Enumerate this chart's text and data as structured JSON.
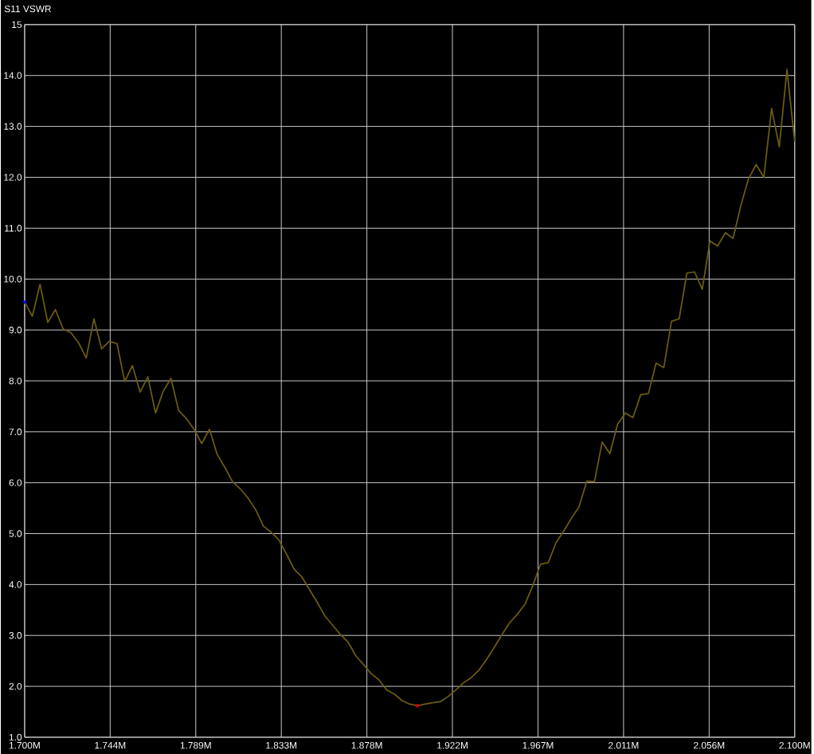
{
  "chart_data": {
    "type": "line",
    "title": "S11 VSWR",
    "grid": true,
    "marker": "none",
    "line_style": "solid",
    "xlim": [
      1.7,
      2.1
    ],
    "ylim": [
      1,
      15
    ],
    "xticks": [
      {
        "value": 1.7,
        "label": "1.700M"
      },
      {
        "value": 1.74444,
        "label": "1.744M"
      },
      {
        "value": 1.78889,
        "label": "1.789M"
      },
      {
        "value": 1.83333,
        "label": "1.833M"
      },
      {
        "value": 1.87778,
        "label": "1.878M"
      },
      {
        "value": 1.92222,
        "label": "1.922M"
      },
      {
        "value": 1.96667,
        "label": "1.967M"
      },
      {
        "value": 2.01111,
        "label": "2.011M"
      },
      {
        "value": 2.05556,
        "label": "2.056M"
      },
      {
        "value": 2.1,
        "label": "2.100M"
      }
    ],
    "yticks": [
      {
        "value": 1,
        "label": "1.0"
      },
      {
        "value": 2,
        "label": "2.0"
      },
      {
        "value": 3,
        "label": "3.0"
      },
      {
        "value": 4,
        "label": "4.0"
      },
      {
        "value": 5,
        "label": "5.0"
      },
      {
        "value": 6,
        "label": "6.0"
      },
      {
        "value": 7,
        "label": "7.0"
      },
      {
        "value": 8,
        "label": "8.0"
      },
      {
        "value": 9,
        "label": "9.0"
      },
      {
        "value": 10,
        "label": "10.0"
      },
      {
        "value": 11,
        "label": "11.0"
      },
      {
        "value": 12,
        "label": "12.0"
      },
      {
        "value": 13,
        "label": "13.0"
      },
      {
        "value": 14,
        "label": "14.0"
      },
      15
    ],
    "series": [
      {
        "color": "#6b5c12",
        "x": [
          1.7,
          1.704,
          1.708,
          1.712,
          1.716,
          1.72,
          1.724,
          1.728,
          1.732,
          1.736,
          1.74,
          1.744,
          1.748,
          1.752,
          1.756,
          1.76,
          1.764,
          1.768,
          1.772,
          1.776,
          1.78,
          1.784,
          1.788,
          1.792,
          1.796,
          1.8,
          1.804,
          1.808,
          1.812,
          1.816,
          1.82,
          1.824,
          1.828,
          1.832,
          1.836,
          1.84,
          1.844,
          1.848,
          1.852,
          1.856,
          1.86,
          1.864,
          1.868,
          1.872,
          1.876,
          1.88,
          1.884,
          1.888,
          1.892,
          1.896,
          1.9,
          1.904,
          1.908,
          1.912,
          1.916,
          1.92,
          1.924,
          1.928,
          1.932,
          1.936,
          1.94,
          1.944,
          1.948,
          1.952,
          1.956,
          1.96,
          1.964,
          1.968,
          1.972,
          1.976,
          1.98,
          1.984,
          1.988,
          1.992,
          1.996,
          2.0,
          2.004,
          2.008,
          2.012,
          2.016,
          2.02,
          2.024,
          2.028,
          2.032,
          2.036,
          2.04,
          2.044,
          2.048,
          2.052,
          2.056,
          2.06,
          2.064,
          2.068,
          2.072,
          2.076,
          2.08,
          2.084,
          2.088,
          2.092,
          2.096,
          2.1
        ],
        "values": [
          9.55,
          9.27,
          9.9,
          9.15,
          9.4,
          9.02,
          8.95,
          8.75,
          8.45,
          9.22,
          8.63,
          8.78,
          8.73,
          7.99,
          8.3,
          7.78,
          8.08,
          7.37,
          7.8,
          8.05,
          7.42,
          7.26,
          7.05,
          6.77,
          7.05,
          6.56,
          6.3,
          6.02,
          5.88,
          5.7,
          5.47,
          5.15,
          5.03,
          4.88,
          4.6,
          4.3,
          4.15,
          3.9,
          3.65,
          3.38,
          3.2,
          3.02,
          2.87,
          2.6,
          2.43,
          2.25,
          2.13,
          1.93,
          1.85,
          1.72,
          1.65,
          1.62,
          1.65,
          1.68,
          1.7,
          1.8,
          1.93,
          2.07,
          2.17,
          2.32,
          2.53,
          2.77,
          3.02,
          3.25,
          3.42,
          3.62,
          3.98,
          4.4,
          4.43,
          4.82,
          5.05,
          5.3,
          5.53,
          6.03,
          6.02,
          6.8,
          6.57,
          7.15,
          7.37,
          7.28,
          7.73,
          7.75,
          8.35,
          8.26,
          9.17,
          9.22,
          10.12,
          10.14,
          9.8,
          10.75,
          10.65,
          10.91,
          10.8,
          11.44,
          11.97,
          12.25,
          12.0,
          13.35,
          12.6,
          14.12,
          12.7
        ]
      },
      {
        "type": "scatter",
        "marker": "triangle",
        "color": "#0000ff",
        "x": [
          1.7
        ],
        "values": [
          9.55
        ]
      },
      {
        "type": "scatter",
        "marker": "triangle",
        "color": "#ff0000",
        "x": [
          1.904
        ],
        "values": [
          1.62
        ]
      }
    ]
  }
}
